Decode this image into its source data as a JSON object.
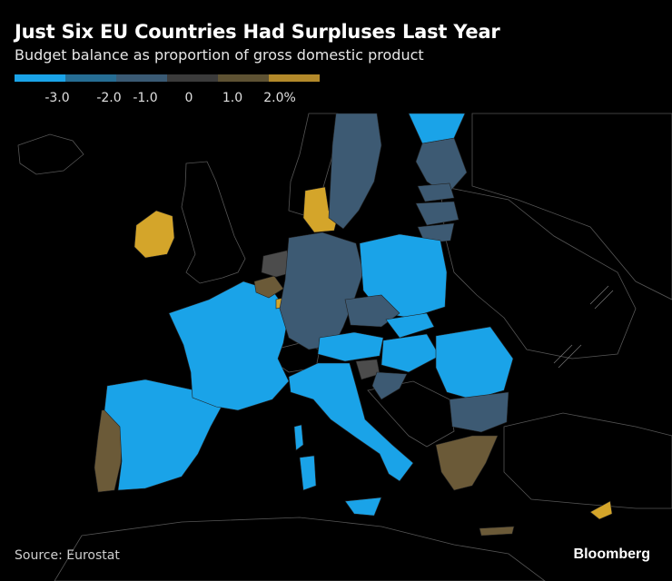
{
  "title": "Just Six EU Countries Had Surpluses Last Year",
  "subtitle": "Budget balance as proportion of gross domestic product",
  "legend": {
    "colors": [
      "#1aa3e8",
      "#266d94",
      "#3a5a74",
      "#3b3b3b",
      "#5e5233",
      "#b3892a"
    ],
    "ticks": [
      "-3.0",
      "-2.0",
      "-1.0",
      "0",
      "1.0",
      "2.0%"
    ]
  },
  "map_colors": {
    "le_minus3": "#1aa3e8",
    "minus3_minus2": "#2f6f93",
    "minus2_minus1": "#3d5a73",
    "minus1_0": "#4c4c4c",
    "0_1": "#6b5a38",
    "1_2": "#b38a2a",
    "ge_2": "#d4a52a",
    "non_eu": "#000000",
    "border": "#444444"
  },
  "source": "Source: Eurostat",
  "brand": "Bloomberg"
}
